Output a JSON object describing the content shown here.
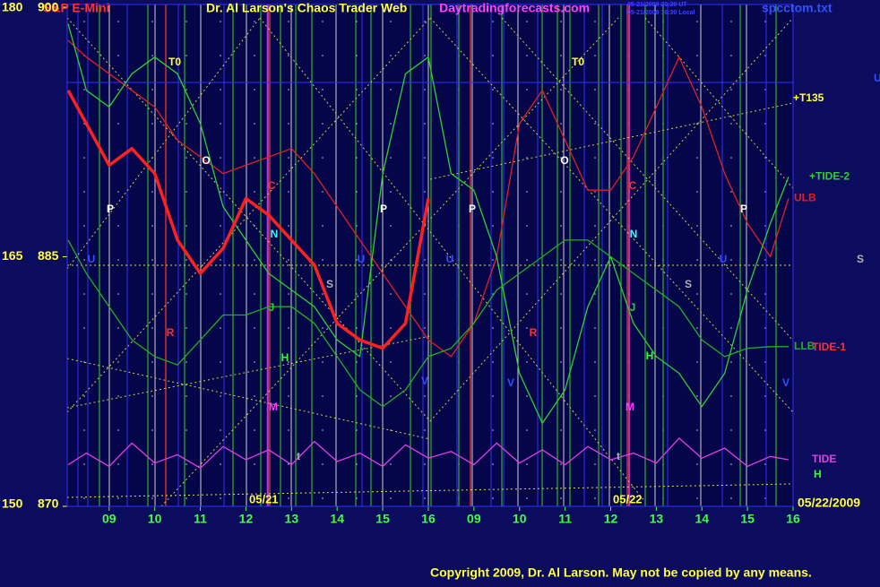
{
  "chart_data": {
    "type": "line",
    "title": "Dr. Al Larson's Chaos Trader Web",
    "instrument": "S&P E-Mini",
    "website": "Daytradingforecasts.com",
    "file": "spcctom.txt",
    "timestamps": [
      "05-21/2009 20:30 UT",
      "05-21/2009 16:30 Local"
    ],
    "copyright": "Copyright 2009, Dr. Al Larson. May not be copied by any means.",
    "dates": [
      "05/21",
      "05/22",
      "05/22/2009"
    ],
    "x": [
      -0.9,
      -0.5,
      0,
      0.5,
      1,
      1.5,
      2,
      2.5,
      3,
      3.5,
      4,
      4.5,
      5,
      5.5,
      6,
      6.5,
      7,
      7.5,
      8,
      8.5,
      9,
      9.5,
      10,
      10.5,
      11,
      11.5,
      12,
      12.5,
      13,
      13.5,
      14,
      14.5,
      14.9
    ],
    "xlim": [
      -0.92,
      15
    ],
    "xticks": [
      {
        "value": 0,
        "label": "09"
      },
      {
        "value": 1,
        "label": "10"
      },
      {
        "value": 2,
        "label": "11"
      },
      {
        "value": 3,
        "label": "12"
      },
      {
        "value": 4,
        "label": "13"
      },
      {
        "value": 5,
        "label": "14"
      },
      {
        "value": 6,
        "label": "15"
      },
      {
        "value": 7,
        "label": "16"
      },
      {
        "value": 8,
        "label": "09"
      },
      {
        "value": 9,
        "label": "10"
      },
      {
        "value": 10,
        "label": "11"
      },
      {
        "value": 11,
        "label": "12"
      },
      {
        "value": 12,
        "label": "13"
      },
      {
        "value": 13,
        "label": "14"
      },
      {
        "value": 14,
        "label": "15"
      },
      {
        "value": 15,
        "label": "16"
      }
    ],
    "ylim": [
      870,
      900
    ],
    "yticks": [
      870,
      885,
      900
    ],
    "y2lim": [
      150,
      180
    ],
    "y2ticks": [
      150,
      165,
      180
    ],
    "color": "#ff2020",
    "values": [
      895,
      893,
      890.5,
      891.5,
      890,
      886,
      884,
      885.5,
      888.5,
      887.5,
      886,
      884.5,
      881,
      880,
      879.5,
      881,
      888.5,
      null,
      null,
      null,
      null,
      null,
      null,
      null,
      null,
      null,
      null,
      null,
      null,
      null,
      null,
      null,
      null
    ],
    "series": [
      {
        "name": "ULB",
        "color": "#e02020",
        "values": [
          898,
          897,
          896,
          895,
          894,
          892,
          891,
          890,
          890.5,
          891,
          891.5,
          890,
          888,
          886,
          884,
          882,
          880,
          879,
          881,
          885,
          893,
          895,
          892,
          889,
          889,
          891,
          894,
          897,
          894,
          890,
          887,
          885,
          888.5
        ]
      },
      {
        "name": "+TIDE-2",
        "color": "#30d030",
        "values": [
          899,
          895,
          894,
          896,
          897,
          896,
          893,
          888,
          886,
          884,
          883,
          882,
          880,
          879,
          890,
          896,
          897,
          890,
          889,
          885,
          878,
          875,
          877,
          882,
          885,
          881,
          879,
          878,
          876,
          878,
          883,
          887,
          889.8
        ]
      },
      {
        "name": "LLB",
        "color": "#20b020",
        "values": [
          886,
          884,
          882,
          880,
          879,
          878.5,
          880,
          881.5,
          881.5,
          882,
          882,
          881,
          879,
          877,
          876,
          877,
          879,
          879.5,
          881,
          883,
          884,
          885,
          886,
          886,
          885,
          884,
          883,
          882,
          880,
          879,
          879.5,
          879.6,
          879.6
        ]
      },
      {
        "name": "TIDE",
        "color": "#e040e0",
        "values": [
          872.5,
          873.2,
          872.4,
          873.8,
          872.6,
          873.1,
          872.3,
          873.6,
          872.8,
          873.4,
          872.5,
          873.9,
          872.7,
          873.2,
          872.4,
          873.7,
          872.9,
          873.3,
          872.5,
          873.8,
          872.6,
          873.4,
          872.5,
          873.6,
          872.8,
          873.2,
          872.6,
          874.1,
          872.9,
          873.5,
          872.4,
          873.0,
          872.8
        ]
      }
    ],
    "annotations": [
      "T0",
      "T0",
      "O",
      "O",
      "P",
      "P",
      "P",
      "P",
      "C",
      "C",
      "N",
      "N",
      "U",
      "U",
      "U",
      "U",
      "U",
      "S",
      "S",
      "S",
      "R",
      "R",
      "J",
      "J",
      "H",
      "H",
      "H",
      "V",
      "V",
      "V",
      "M",
      "M",
      "t",
      "t",
      "+T135",
      "TIDE-1"
    ]
  }
}
